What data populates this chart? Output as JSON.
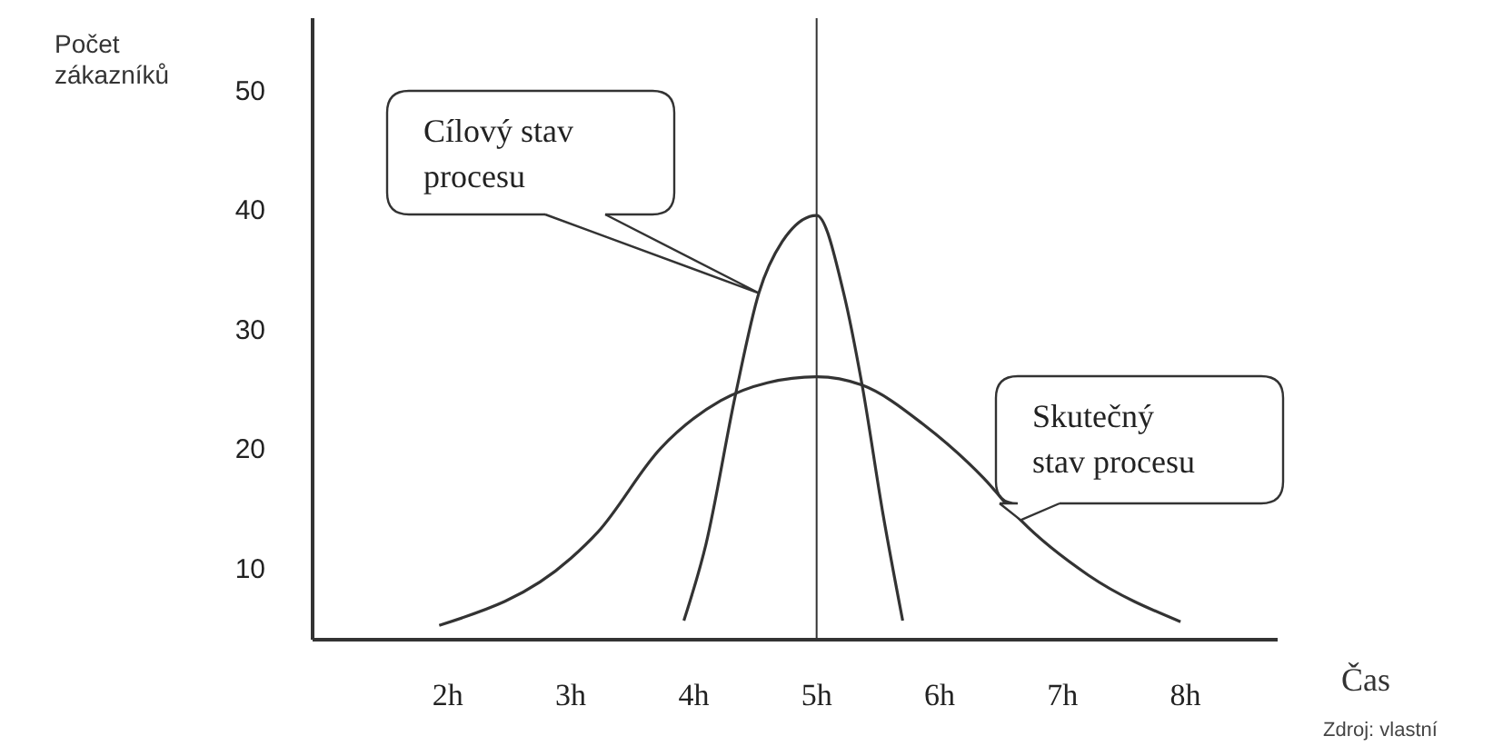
{
  "chart_data": {
    "type": "line",
    "xlabel": "Čas",
    "ylabel": "Počet zákazníků",
    "annotations": [
      "Zdroj: vlastní"
    ],
    "series": [
      {
        "name": "Cílový stav procesu",
        "color": "#333333",
        "x": [
          3.92,
          4.1,
          4.34,
          4.53,
          4.72,
          5,
          5.22,
          5.37,
          5.54,
          5.7
        ],
        "values": [
          5.6,
          12,
          24.5,
          33,
          37.3,
          39.5,
          33,
          25.3,
          14.5,
          5.6
        ]
      },
      {
        "name": "Skutečný stav procesu",
        "color": "#333333",
        "x": [
          1.93,
          3,
          3.22,
          3.73,
          4.22,
          4.6,
          5,
          5.37,
          5.87,
          6.36,
          6.66,
          7.21,
          7.96
        ],
        "values": [
          5.2,
          10.8,
          13,
          20,
          24,
          25.5,
          26,
          25.3,
          22,
          17.5,
          14,
          9.4,
          5.5
        ]
      }
    ],
    "ref_lines": [
      {
        "axis": "x",
        "value": 5,
        "color": "#333333"
      }
    ],
    "xlim": [
      0.9,
      8.75
    ],
    "xticks": [
      {
        "value": 2,
        "label": "2h"
      },
      {
        "value": 3,
        "label": "3h"
      },
      {
        "value": 4,
        "label": "4h"
      },
      {
        "value": 5,
        "label": "5h"
      },
      {
        "value": 6,
        "label": "6h"
      },
      {
        "value": 7,
        "label": "7h"
      },
      {
        "value": 8,
        "label": "8h"
      }
    ],
    "ylim": [
      4,
      56
    ],
    "yticks": [
      10,
      20,
      30,
      40,
      50
    ],
    "grid": false,
    "legend": false,
    "marker": "none",
    "line_style": "solid"
  }
}
